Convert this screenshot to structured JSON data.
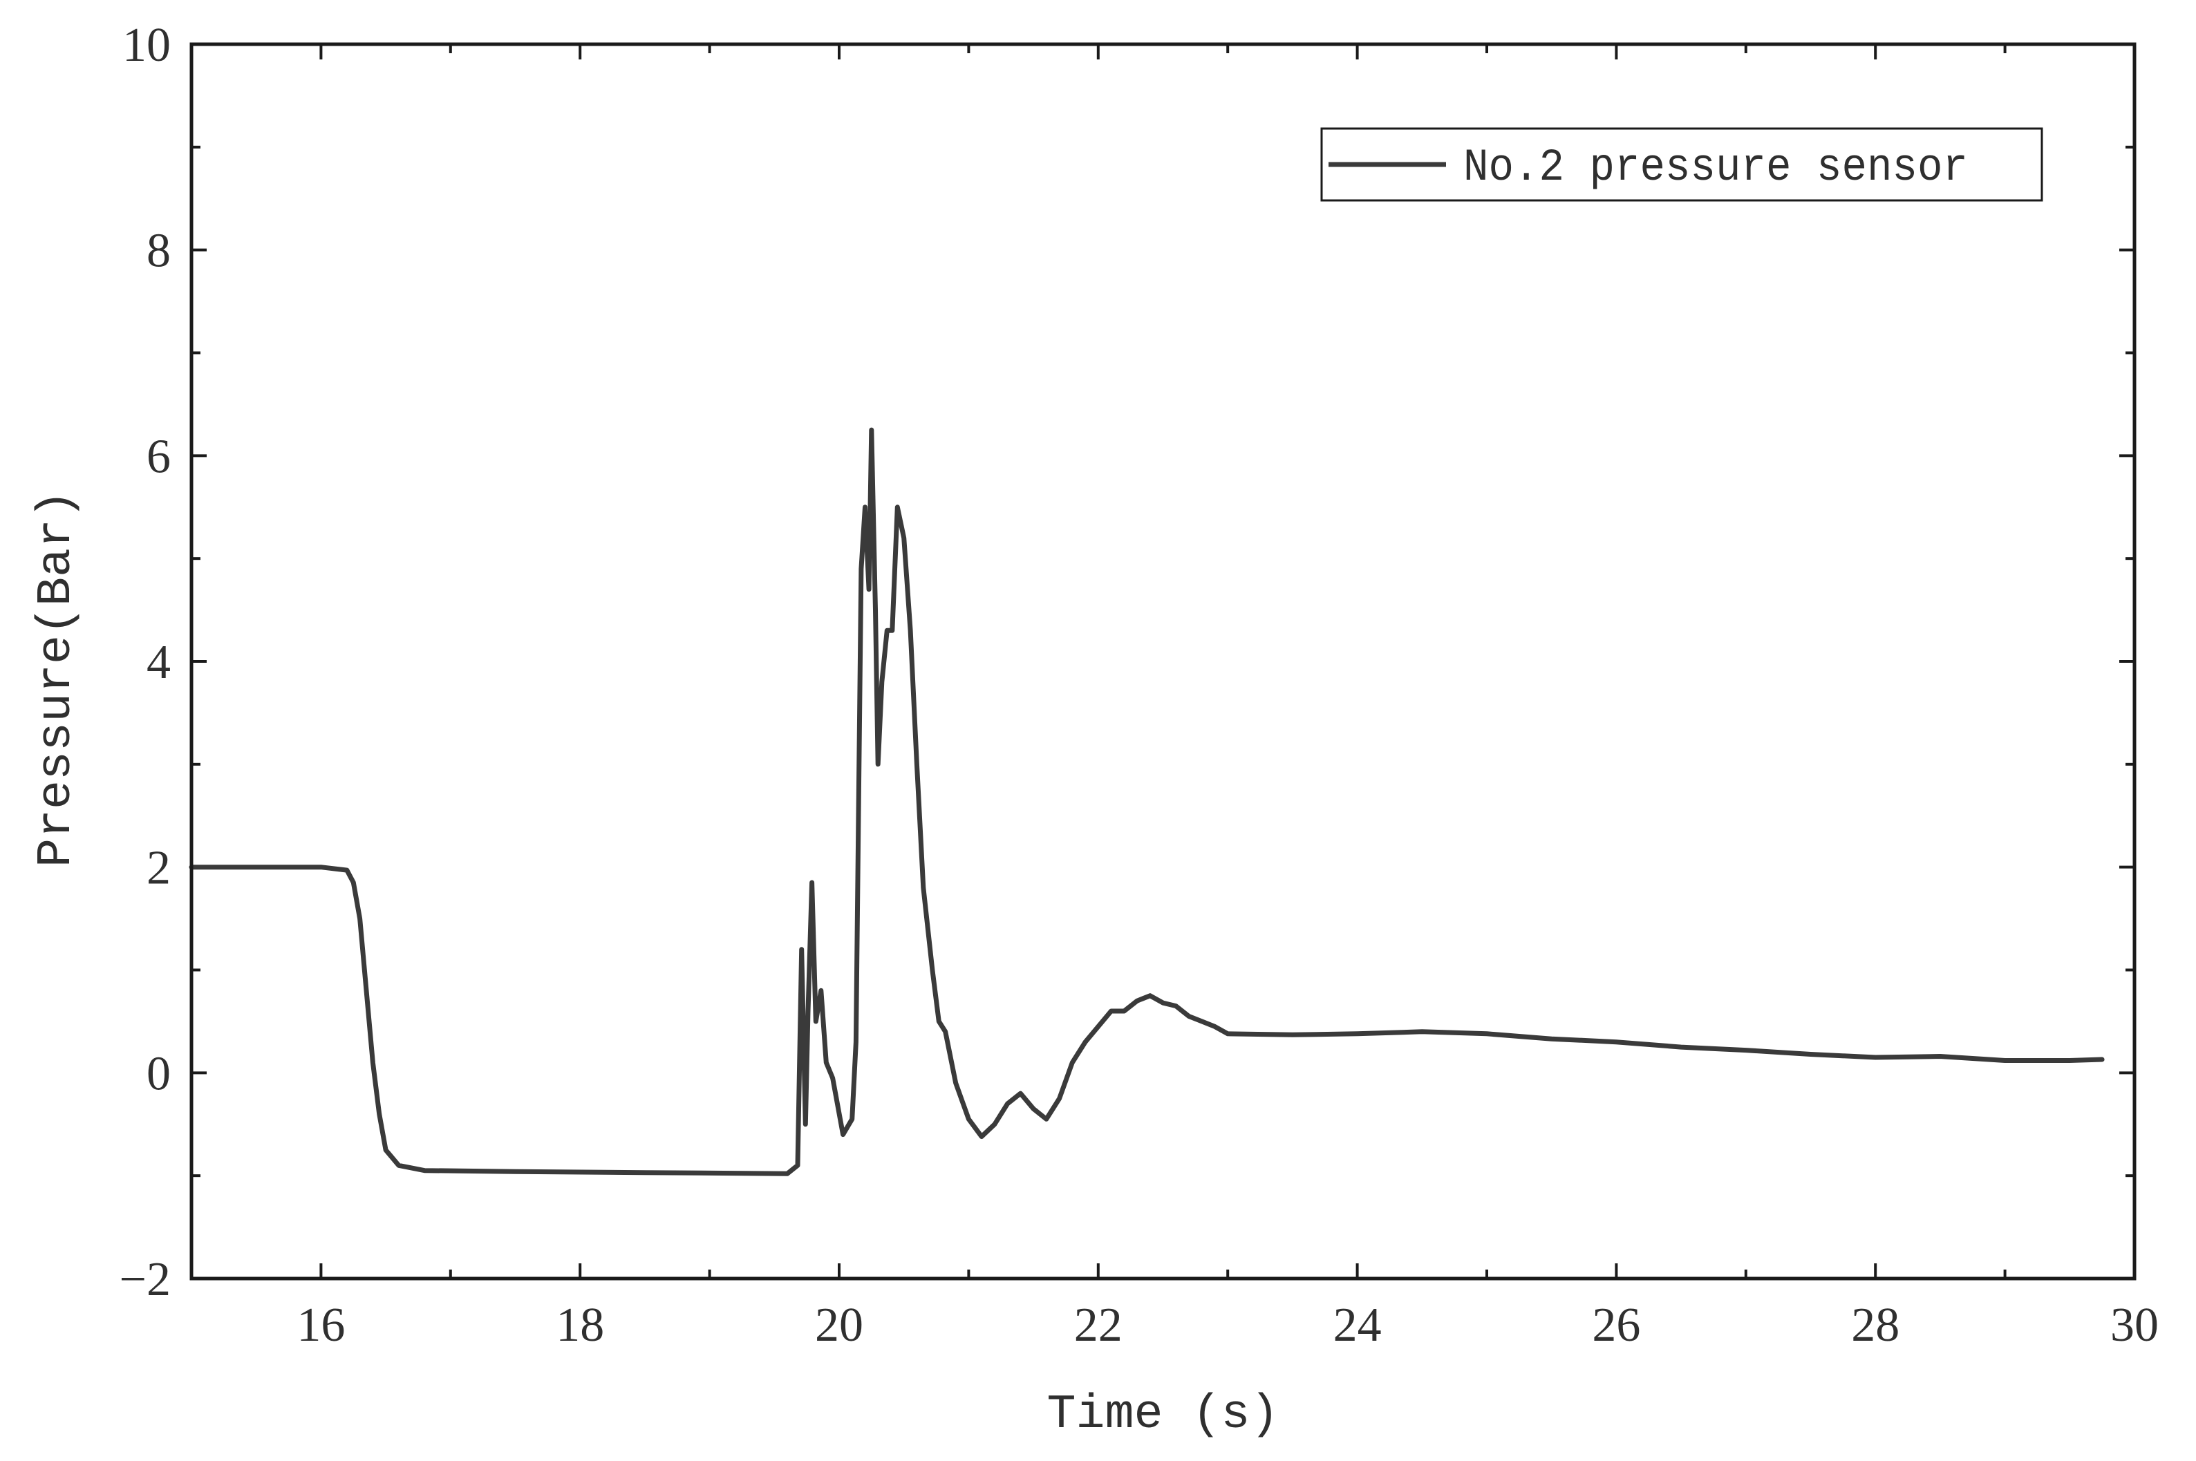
{
  "chart_data": {
    "type": "line",
    "title": "",
    "xlabel": "Time (s)",
    "ylabel": "Pressure(Bar)",
    "xlim": [
      15,
      30
    ],
    "ylim": [
      -2,
      10
    ],
    "xticks": [
      16,
      18,
      20,
      22,
      24,
      26,
      28,
      30
    ],
    "yticks": [
      -2,
      0,
      2,
      4,
      6,
      8,
      10
    ],
    "grid": false,
    "legend": {
      "position": "top-right"
    },
    "colors": {
      "line": "#3a3a3a",
      "axis": "#1a1a1a"
    },
    "series": [
      {
        "name": "No.2 pressure sensor",
        "points": [
          [
            15.0,
            2.0
          ],
          [
            15.5,
            2.0
          ],
          [
            16.0,
            2.0
          ],
          [
            16.2,
            1.97
          ],
          [
            16.25,
            1.85
          ],
          [
            16.3,
            1.5
          ],
          [
            16.35,
            0.8
          ],
          [
            16.4,
            0.1
          ],
          [
            16.45,
            -0.4
          ],
          [
            16.5,
            -0.75
          ],
          [
            16.6,
            -0.9
          ],
          [
            16.8,
            -0.95
          ],
          [
            17.5,
            -0.96
          ],
          [
            18.5,
            -0.97
          ],
          [
            19.6,
            -0.98
          ],
          [
            19.68,
            -0.9
          ],
          [
            19.71,
            1.2
          ],
          [
            19.74,
            -0.5
          ],
          [
            19.76,
            0.6
          ],
          [
            19.79,
            1.85
          ],
          [
            19.82,
            0.5
          ],
          [
            19.86,
            0.8
          ],
          [
            19.9,
            0.1
          ],
          [
            19.95,
            -0.05
          ],
          [
            20.03,
            -0.6
          ],
          [
            20.1,
            -0.45
          ],
          [
            20.13,
            0.3
          ],
          [
            20.17,
            4.9
          ],
          [
            20.2,
            5.5
          ],
          [
            20.23,
            4.7
          ],
          [
            20.25,
            6.25
          ],
          [
            20.28,
            4.5
          ],
          [
            20.3,
            3.0
          ],
          [
            20.33,
            3.8
          ],
          [
            20.37,
            4.3
          ],
          [
            20.41,
            4.3
          ],
          [
            20.45,
            5.5
          ],
          [
            20.5,
            5.2
          ],
          [
            20.55,
            4.3
          ],
          [
            20.6,
            3.0
          ],
          [
            20.65,
            1.8
          ],
          [
            20.72,
            1.0
          ],
          [
            20.77,
            0.5
          ],
          [
            20.82,
            0.4
          ],
          [
            20.9,
            -0.1
          ],
          [
            21.0,
            -0.45
          ],
          [
            21.1,
            -0.62
          ],
          [
            21.2,
            -0.5
          ],
          [
            21.3,
            -0.3
          ],
          [
            21.4,
            -0.2
          ],
          [
            21.5,
            -0.35
          ],
          [
            21.6,
            -0.45
          ],
          [
            21.7,
            -0.25
          ],
          [
            21.8,
            0.1
          ],
          [
            21.9,
            0.3
          ],
          [
            22.0,
            0.45
          ],
          [
            22.1,
            0.6
          ],
          [
            22.2,
            0.6
          ],
          [
            22.3,
            0.7
          ],
          [
            22.4,
            0.75
          ],
          [
            22.5,
            0.68
          ],
          [
            22.6,
            0.65
          ],
          [
            22.7,
            0.55
          ],
          [
            22.8,
            0.5
          ],
          [
            22.9,
            0.45
          ],
          [
            23.0,
            0.38
          ],
          [
            23.5,
            0.37
          ],
          [
            24.0,
            0.38
          ],
          [
            24.5,
            0.4
          ],
          [
            25.0,
            0.38
          ],
          [
            25.5,
            0.33
          ],
          [
            26.0,
            0.3
          ],
          [
            26.5,
            0.25
          ],
          [
            27.0,
            0.22
          ],
          [
            27.5,
            0.18
          ],
          [
            28.0,
            0.15
          ],
          [
            28.5,
            0.16
          ],
          [
            29.0,
            0.12
          ],
          [
            29.5,
            0.12
          ],
          [
            29.75,
            0.13
          ]
        ]
      }
    ]
  }
}
